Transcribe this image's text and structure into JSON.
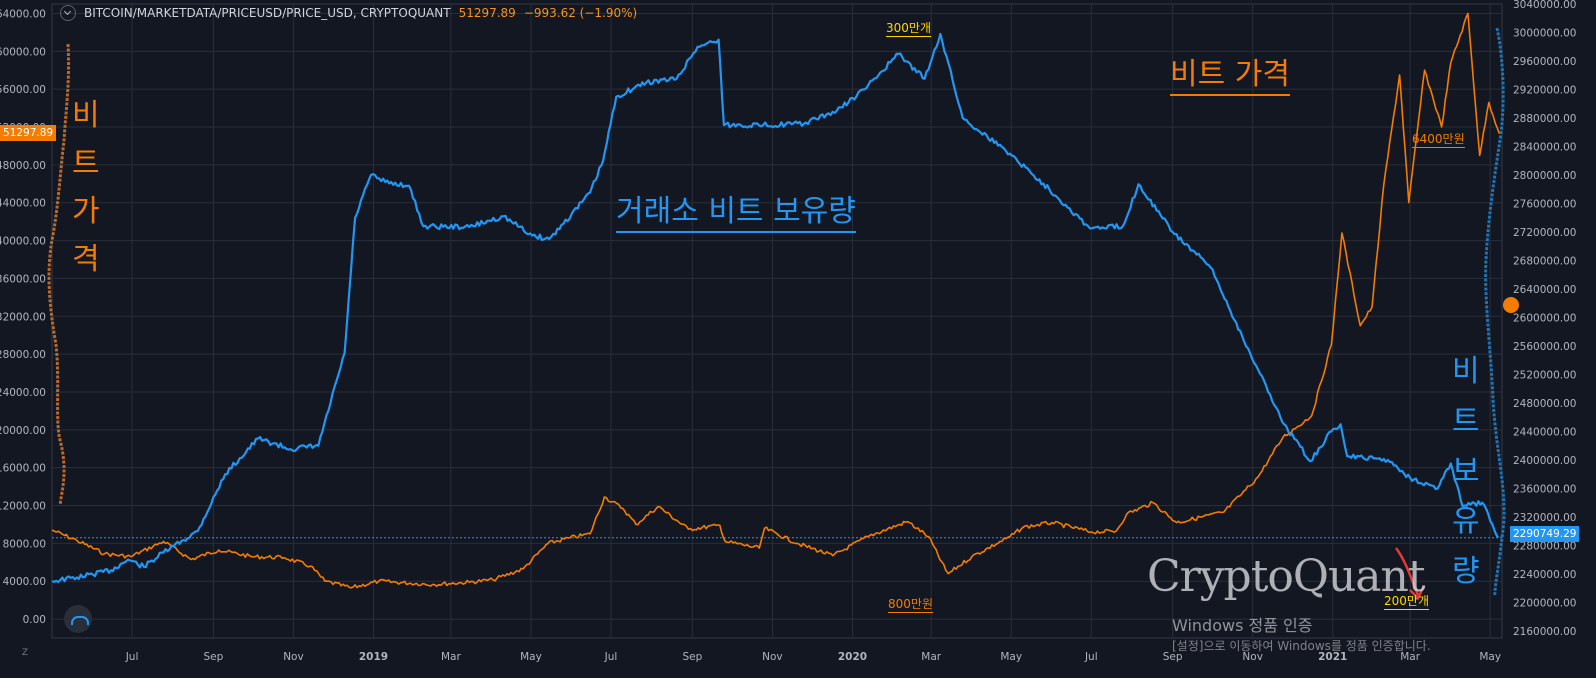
{
  "header": {
    "symbol": "BITCOIN/MARKETDATA/PRICEUSD/PRICE_USD, CRYPTOQUANT",
    "price": "51297.89",
    "change": "−993.62 (−1.90%)"
  },
  "axes": {
    "left_ticks": [
      "64000.00",
      "60000.00",
      "56000.00",
      "52000.00",
      "48000.00",
      "44000.00",
      "40000.00",
      "36000.00",
      "32000.00",
      "28000.00",
      "24000.00",
      "20000.00",
      "16000.00",
      "12000.00",
      "8000.00",
      "4000.00",
      "0.00"
    ],
    "right_ticks": [
      "3040000.00",
      "3000000.00",
      "2960000.00",
      "2920000.00",
      "2880000.00",
      "2840000.00",
      "2800000.00",
      "2760000.00",
      "2720000.00",
      "2680000.00",
      "2640000.00",
      "2600000.00",
      "2560000.00",
      "2520000.00",
      "2480000.00",
      "2440000.00",
      "2400000.00",
      "2360000.00",
      "2320000.00",
      "2280000.00",
      "2240000.00",
      "2200000.00",
      "2160000.00"
    ],
    "x_ticks": [
      {
        "label": "Jul",
        "bold": false
      },
      {
        "label": "Sep",
        "bold": false
      },
      {
        "label": "Nov",
        "bold": false
      },
      {
        "label": "2019",
        "bold": true
      },
      {
        "label": "Mar",
        "bold": false
      },
      {
        "label": "May",
        "bold": false
      },
      {
        "label": "Jul",
        "bold": false
      },
      {
        "label": "Sep",
        "bold": false
      },
      {
        "label": "Nov",
        "bold": false
      },
      {
        "label": "2020",
        "bold": true
      },
      {
        "label": "Mar",
        "bold": false
      },
      {
        "label": "May",
        "bold": false
      },
      {
        "label": "Jul",
        "bold": false
      },
      {
        "label": "Sep",
        "bold": false
      },
      {
        "label": "Nov",
        "bold": false
      },
      {
        "label": "2021",
        "bold": true
      },
      {
        "label": "Mar",
        "bold": false
      },
      {
        "label": "May",
        "bold": false
      }
    ]
  },
  "price_tags": {
    "left": "51297.89",
    "right": "2290749.29"
  },
  "annotations": {
    "reserve_title": "거래소 비트 보유량",
    "price_title": "비트 가격",
    "peak_label": "300만개",
    "low_label": "200만개",
    "price_low": "800만원",
    "price_high": "6400만원",
    "left_vertical": [
      "비",
      "트",
      "가",
      "격"
    ],
    "right_vertical": [
      "비",
      "트",
      "보",
      "유",
      "량"
    ]
  },
  "watermark": {
    "brand": "CryptoQuant",
    "win_activation": "Windows 정품 인증",
    "win_hint": "[설정]으로 이동하여 Windows를 정품 인증합니다."
  },
  "zoom_button": "Z",
  "colors": {
    "background": "#131722",
    "grid": "#2a2e39",
    "price_line": "#f57c00",
    "reserve_line": "#2196f3",
    "text": "#b2b5be"
  },
  "chart_data": {
    "type": "line",
    "x_range": [
      "2018-05-01",
      "2021-05-10"
    ],
    "y_left": {
      "label": "",
      "range": [
        -2000,
        65000
      ]
    },
    "y_right": {
      "label": "",
      "range": [
        2150000,
        3040000
      ]
    },
    "series": [
      {
        "name": "",
        "axis": "left",
        "points": [
          [
            "2018-05-01",
            9400
          ],
          [
            "2018-05-20",
            8300
          ],
          [
            "2018-06-10",
            6900
          ],
          [
            "2018-06-30",
            6600
          ],
          [
            "2018-07-25",
            8200
          ],
          [
            "2018-08-15",
            6300
          ],
          [
            "2018-09-05",
            7300
          ],
          [
            "2018-09-30",
            6600
          ],
          [
            "2018-10-25",
            6500
          ],
          [
            "2018-11-14",
            5600
          ],
          [
            "2018-11-25",
            4000
          ],
          [
            "2018-12-15",
            3300
          ],
          [
            "2019-01-05",
            4000
          ],
          [
            "2019-02-15",
            3650
          ],
          [
            "2019-03-15",
            3900
          ],
          [
            "2019-04-02",
            4150
          ],
          [
            "2019-04-25",
            5300
          ],
          [
            "2019-05-14",
            8000
          ],
          [
            "2019-05-31",
            8600
          ],
          [
            "2019-06-15",
            9000
          ],
          [
            "2019-06-26",
            12900
          ],
          [
            "2019-07-10",
            11700
          ],
          [
            "2019-07-20",
            10000
          ],
          [
            "2019-08-06",
            11900
          ],
          [
            "2019-08-29",
            9500
          ],
          [
            "2019-09-22",
            9900
          ],
          [
            "2019-09-26",
            8200
          ],
          [
            "2019-10-22",
            7500
          ],
          [
            "2019-10-26",
            9600
          ],
          [
            "2019-11-20",
            8000
          ],
          [
            "2019-12-17",
            6700
          ],
          [
            "2020-01-14",
            8800
          ],
          [
            "2020-02-12",
            10300
          ],
          [
            "2020-02-28",
            8700
          ],
          [
            "2020-03-12",
            5200
          ],
          [
            "2020-03-14",
            4800
          ],
          [
            "2020-04-01",
            6600
          ],
          [
            "2020-04-30",
            8700
          ],
          [
            "2020-05-10",
            9700
          ],
          [
            "2020-06-01",
            10200
          ],
          [
            "2020-07-01",
            9200
          ],
          [
            "2020-07-20",
            9300
          ],
          [
            "2020-07-28",
            11100
          ],
          [
            "2020-08-17",
            12300
          ],
          [
            "2020-09-04",
            10200
          ],
          [
            "2020-10-10",
            11300
          ],
          [
            "2020-10-22",
            13000
          ],
          [
            "2020-11-05",
            15000
          ],
          [
            "2020-11-24",
            19200
          ],
          [
            "2020-12-16",
            21500
          ],
          [
            "2020-12-31",
            29000
          ],
          [
            "2021-01-08",
            40800
          ],
          [
            "2021-01-22",
            31000
          ],
          [
            "2021-01-31",
            33000
          ],
          [
            "2021-02-09",
            46000
          ],
          [
            "2021-02-21",
            57500
          ],
          [
            "2021-02-28",
            44000
          ],
          [
            "2021-03-12",
            58000
          ],
          [
            "2021-03-25",
            52000
          ],
          [
            "2021-04-01",
            58800
          ],
          [
            "2021-04-14",
            64000
          ],
          [
            "2021-04-23",
            49000
          ],
          [
            "2021-04-30",
            54600
          ],
          [
            "2021-05-08",
            51298
          ]
        ]
      },
      {
        "name": "",
        "axis": "right",
        "points": [
          [
            "2018-05-01",
            2230000
          ],
          [
            "2018-05-20",
            2235000
          ],
          [
            "2018-06-15",
            2245000
          ],
          [
            "2018-06-28",
            2260000
          ],
          [
            "2018-07-10",
            2250000
          ],
          [
            "2018-07-25",
            2270000
          ],
          [
            "2018-08-20",
            2300000
          ],
          [
            "2018-09-10",
            2380000
          ],
          [
            "2018-10-05",
            2430000
          ],
          [
            "2018-10-30",
            2415000
          ],
          [
            "2018-11-20",
            2420000
          ],
          [
            "2018-12-10",
            2550000
          ],
          [
            "2018-12-18",
            2740000
          ],
          [
            "2018-12-30",
            2800000
          ],
          [
            "2019-01-10",
            2790000
          ],
          [
            "2019-01-28",
            2785000
          ],
          [
            "2019-02-08",
            2728000
          ],
          [
            "2019-03-15",
            2727000
          ],
          [
            "2019-04-10",
            2742000
          ],
          [
            "2019-05-02",
            2715000
          ],
          [
            "2019-05-15",
            2710000
          ],
          [
            "2019-06-01",
            2745000
          ],
          [
            "2019-06-15",
            2775000
          ],
          [
            "2019-06-25",
            2820000
          ],
          [
            "2019-07-05",
            2910000
          ],
          [
            "2019-07-28",
            2930000
          ],
          [
            "2019-08-20",
            2935000
          ],
          [
            "2019-09-05",
            2980000
          ],
          [
            "2019-09-21",
            2990000
          ],
          [
            "2019-09-25",
            2870000
          ],
          [
            "2019-10-25",
            2870000
          ],
          [
            "2019-11-25",
            2872000
          ],
          [
            "2019-12-20",
            2890000
          ],
          [
            "2020-01-10",
            2920000
          ],
          [
            "2020-02-05",
            2970000
          ],
          [
            "2020-02-25",
            2935000
          ],
          [
            "2020-03-08",
            2998000
          ],
          [
            "2020-03-25",
            2880000
          ],
          [
            "2020-04-30",
            2830000
          ],
          [
            "2020-05-30",
            2780000
          ],
          [
            "2020-06-30",
            2725000
          ],
          [
            "2020-07-25",
            2728000
          ],
          [
            "2020-08-06",
            2787000
          ],
          [
            "2020-09-01",
            2720000
          ],
          [
            "2020-09-30",
            2670000
          ],
          [
            "2020-10-30",
            2550000
          ],
          [
            "2020-11-25",
            2450000
          ],
          [
            "2020-12-15",
            2398000
          ],
          [
            "2020-12-31",
            2440000
          ],
          [
            "2021-01-07",
            2450000
          ],
          [
            "2021-01-12",
            2405000
          ],
          [
            "2021-02-12",
            2400000
          ],
          [
            "2021-03-01",
            2375000
          ],
          [
            "2021-03-22",
            2360000
          ],
          [
            "2021-04-01",
            2395000
          ],
          [
            "2021-04-10",
            2335000
          ],
          [
            "2021-04-25",
            2340000
          ],
          [
            "2021-05-07",
            2290749
          ]
        ]
      }
    ]
  }
}
